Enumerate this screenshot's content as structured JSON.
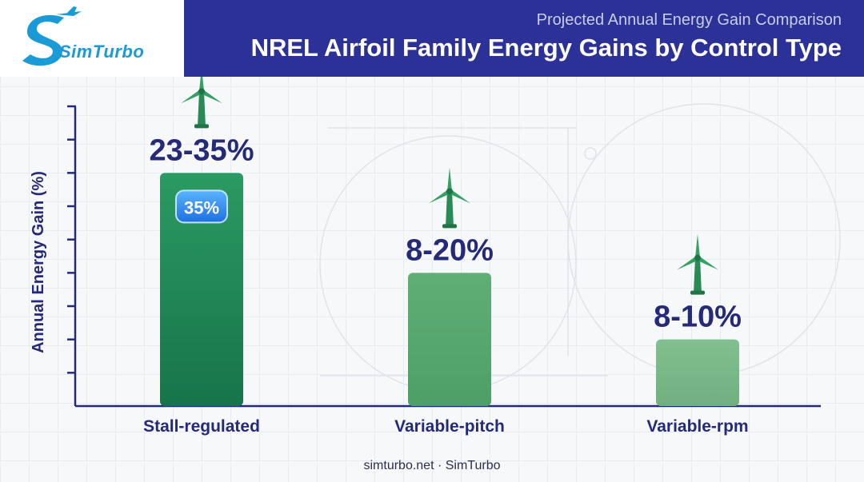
{
  "header": {
    "subtitle": "Projected Annual Energy Gain Comparison",
    "title": "NREL Airfoil Family Energy Gains by Control Type"
  },
  "logo": {
    "text": "SimTurbo"
  },
  "footer": {
    "text": "simturbo.net · SimTurbo"
  },
  "colors": {
    "header": "#2b3196",
    "bar1": "#1e8a57",
    "bar2": "#5aaa72",
    "bar3": "#7dba8b",
    "label": "#252a78"
  },
  "chart_data": {
    "type": "bar",
    "categories": [
      "Stall-regulated",
      "Variable-pitch",
      "Variable-rpm"
    ],
    "values": [
      35,
      20,
      10
    ],
    "value_labels": [
      "23-35%",
      "8-20%",
      "8-10%"
    ],
    "badge": "35%",
    "ylabel": "Annual Energy Gain (%)",
    "ylim": [
      0,
      45
    ],
    "grid": false
  }
}
